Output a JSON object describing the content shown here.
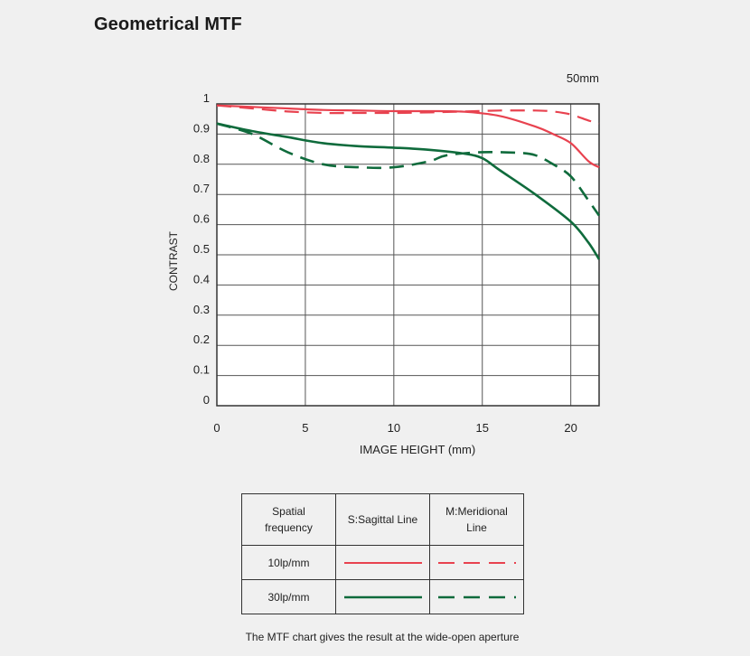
{
  "title": "Geometrical MTF",
  "footnote": "The MTF chart gives the result at the wide-open aperture",
  "legend": {
    "header_col1": "Spatial frequency",
    "header_col2": "S:Sagittal Line",
    "header_col3": "M:Meridional Line",
    "rows": [
      {
        "label": "10lp/mm",
        "color": "#e8424f"
      },
      {
        "label": "30lp/mm",
        "color": "#0f6b3c"
      }
    ]
  },
  "chart_data": {
    "type": "line",
    "annotation": "50mm",
    "xlabel": "IMAGE HEIGHT (mm)",
    "ylabel": "CONTRAST",
    "xlim": [
      0,
      21.6
    ],
    "ylim": [
      0,
      1
    ],
    "x_ticks": [
      0,
      5,
      10,
      15,
      20
    ],
    "y_ticks": [
      0,
      0.1,
      0.2,
      0.3,
      0.4,
      0.5,
      0.6,
      0.7,
      0.8,
      0.9,
      1
    ],
    "grid": true,
    "series": [
      {
        "name": "10lp/mm S:Sagittal Line",
        "color": "#e8424f",
        "dash": "solid",
        "x": [
          0,
          2,
          4,
          6,
          8,
          10,
          12,
          14,
          16,
          18,
          19,
          20,
          21,
          21.6
        ],
        "y": [
          0.995,
          0.99,
          0.985,
          0.98,
          0.978,
          0.976,
          0.976,
          0.974,
          0.96,
          0.925,
          0.9,
          0.87,
          0.81,
          0.79
        ]
      },
      {
        "name": "10lp/mm M:Meridional Line",
        "color": "#e8424f",
        "dash": "dashed",
        "x": [
          0,
          2,
          4,
          6,
          8,
          10,
          12,
          14,
          16,
          18,
          19,
          20,
          21,
          21.6
        ],
        "y": [
          0.995,
          0.985,
          0.975,
          0.97,
          0.97,
          0.97,
          0.972,
          0.975,
          0.978,
          0.978,
          0.975,
          0.965,
          0.945,
          0.935
        ]
      },
      {
        "name": "30lp/mm S:Sagittal Line",
        "color": "#0f6b3c",
        "dash": "solid",
        "x": [
          0,
          2,
          4,
          6,
          8,
          10,
          12,
          14,
          15,
          16,
          18,
          20,
          21,
          21.6
        ],
        "y": [
          0.935,
          0.91,
          0.89,
          0.87,
          0.86,
          0.855,
          0.848,
          0.835,
          0.82,
          0.78,
          0.7,
          0.61,
          0.54,
          0.485
        ]
      },
      {
        "name": "30lp/mm M:Meridional Line",
        "color": "#0f6b3c",
        "dash": "dashed",
        "x": [
          0,
          2,
          4,
          6,
          8,
          10,
          12,
          13,
          15,
          17,
          18,
          19,
          20,
          21,
          21.6
        ],
        "y": [
          0.935,
          0.9,
          0.84,
          0.8,
          0.79,
          0.79,
          0.81,
          0.83,
          0.84,
          0.838,
          0.83,
          0.8,
          0.76,
          0.68,
          0.63
        ]
      }
    ]
  }
}
